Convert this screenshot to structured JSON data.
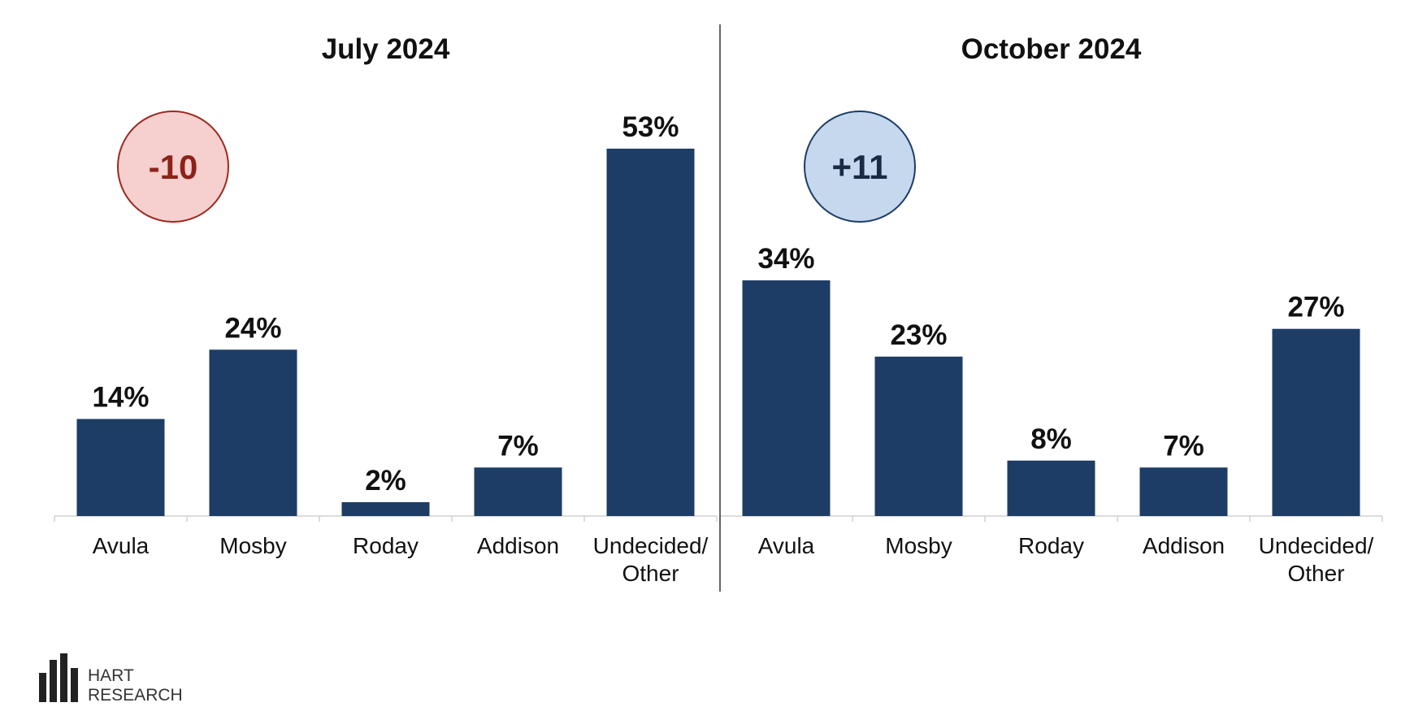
{
  "chart_data": [
    {
      "type": "bar",
      "title": "July 2024",
      "categories": [
        "Avula",
        "Mosby",
        "Roday",
        "Addison",
        "Undecided/\nOther"
      ],
      "values": [
        14,
        24,
        2,
        7,
        53
      ],
      "value_labels": [
        "14%",
        "24%",
        "2%",
        "7%",
        "53%"
      ],
      "ylim": [
        0,
        60
      ],
      "grid": false,
      "bar_color": "#1d3d66",
      "badge": {
        "text": "-10",
        "fill": "#f6cfcf",
        "stroke": "#9b2a1e",
        "text_color": "#8b2318"
      }
    },
    {
      "type": "bar",
      "title": "October 2024",
      "categories": [
        "Avula",
        "Mosby",
        "Roday",
        "Addison",
        "Undecided/\nOther"
      ],
      "values": [
        34,
        23,
        8,
        7,
        27
      ],
      "value_labels": [
        "34%",
        "23%",
        "8%",
        "7%",
        "27%"
      ],
      "ylim": [
        0,
        60
      ],
      "grid": false,
      "bar_color": "#1d3d66",
      "badge": {
        "text": "+11",
        "fill": "#c5d8ee",
        "stroke": "#1d3d66",
        "text_color": "#1a2a44"
      }
    }
  ],
  "logo": {
    "line1": "HART",
    "line2": "RESEARCH"
  }
}
